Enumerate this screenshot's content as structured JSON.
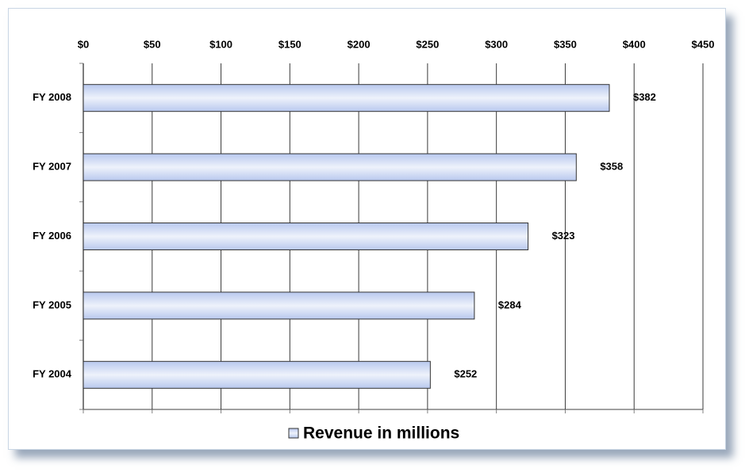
{
  "chart_data": {
    "type": "hbar",
    "categories": [
      "FY 2008",
      "FY 2007",
      "FY 2006",
      "FY 2005",
      "FY 2004"
    ],
    "series": [
      {
        "name": "Revenue in millions",
        "color": "#b8c8ee",
        "values": [
          382,
          358,
          323,
          284,
          252
        ],
        "value_labels": [
          "$382",
          "$358",
          "$323",
          "$284",
          "$252"
        ]
      }
    ],
    "xlim": [
      0,
      450
    ],
    "xticks": [
      {
        "value": 0,
        "label": "$0"
      },
      {
        "value": 50,
        "label": "$50"
      },
      {
        "value": 100,
        "label": "$100"
      },
      {
        "value": 150,
        "label": "$150"
      },
      {
        "value": 200,
        "label": "$200"
      },
      {
        "value": 250,
        "label": "$250"
      },
      {
        "value": 300,
        "label": "$300"
      },
      {
        "value": 350,
        "label": "$350"
      },
      {
        "value": 400,
        "label": "$400"
      },
      {
        "value": 450,
        "label": "$450"
      }
    ],
    "grid": true,
    "legend": "bottom"
  }
}
